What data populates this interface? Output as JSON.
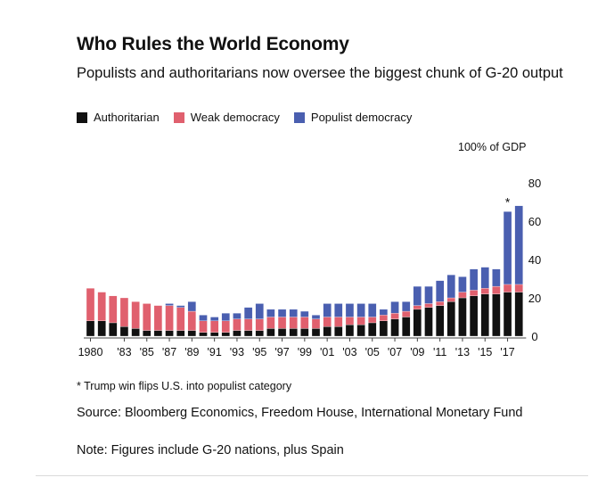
{
  "colors": {
    "authoritarian": "#111111",
    "weak_democracy": "#e0606e",
    "populist_democracy": "#4a5fb0",
    "axis": "#444444"
  },
  "chart_data": {
    "type": "bar",
    "stacked": true,
    "title": "Who Rules the World Economy",
    "subtitle": "Populists and authoritarians now oversee the biggest chunk of G-20 output",
    "unit_label": "100% of GDP",
    "ylim": [
      0,
      80
    ],
    "yticks": [
      0,
      20,
      40,
      60,
      80
    ],
    "y_axis_side": "right",
    "grid": false,
    "legend_position": "top-left",
    "xtick_labels": [
      "1980",
      "'83",
      "'85",
      "'87",
      "'89",
      "'91",
      "'93",
      "'95",
      "'97",
      "'99",
      "'01",
      "'03",
      "'05",
      "'07",
      "'09",
      "'11",
      "'13",
      "'15",
      "'17"
    ],
    "xtick_years": [
      1980,
      1983,
      1985,
      1987,
      1989,
      1991,
      1993,
      1995,
      1997,
      1999,
      2001,
      2003,
      2005,
      2007,
      2009,
      2011,
      2013,
      2015,
      2017
    ],
    "categories": [
      1980,
      1981,
      1982,
      1983,
      1984,
      1985,
      1986,
      1987,
      1988,
      1989,
      1990,
      1991,
      1992,
      1993,
      1994,
      1995,
      1996,
      1997,
      1998,
      1999,
      2000,
      2001,
      2002,
      2003,
      2004,
      2005,
      2006,
      2007,
      2008,
      2009,
      2010,
      2011,
      2012,
      2013,
      2014,
      2015,
      2016,
      2017,
      2018
    ],
    "series": [
      {
        "name": "Authoritarian",
        "values": [
          8,
          8,
          7,
          5,
          4,
          3,
          3,
          3,
          3,
          3,
          2,
          2,
          2,
          3,
          3,
          3,
          4,
          4,
          4,
          4,
          4,
          5,
          5,
          6,
          6,
          7,
          8,
          9,
          10,
          14,
          15,
          16,
          18,
          20,
          21,
          22,
          22,
          23,
          23
        ]
      },
      {
        "name": "Weak democracy",
        "values": [
          17,
          15,
          14,
          15,
          14,
          14,
          13,
          13,
          12,
          10,
          6,
          6,
          6,
          6,
          6,
          6,
          6,
          6,
          6,
          6,
          5,
          5,
          5,
          4,
          4,
          3,
          3,
          3,
          3,
          2,
          2,
          2,
          2,
          3,
          3,
          3,
          4,
          4,
          4
        ]
      },
      {
        "name": "Populist democracy",
        "values": [
          0,
          0,
          0,
          0,
          0,
          0,
          0,
          1,
          1,
          5,
          3,
          2,
          4,
          3,
          6,
          8,
          4,
          4,
          4,
          3,
          2,
          7,
          7,
          7,
          7,
          7,
          3,
          6,
          5,
          10,
          9,
          11,
          12,
          8,
          11,
          11,
          9,
          38,
          41
        ]
      }
    ],
    "annotations": [
      {
        "text": "*",
        "category": 2017
      }
    ]
  },
  "footnote": "* Trump win flips U.S. into populist category",
  "source": "Source: Bloomberg Economics, Freedom House, International Monetary Fund",
  "note": "Note: Figures include G-20 nations, plus Spain"
}
